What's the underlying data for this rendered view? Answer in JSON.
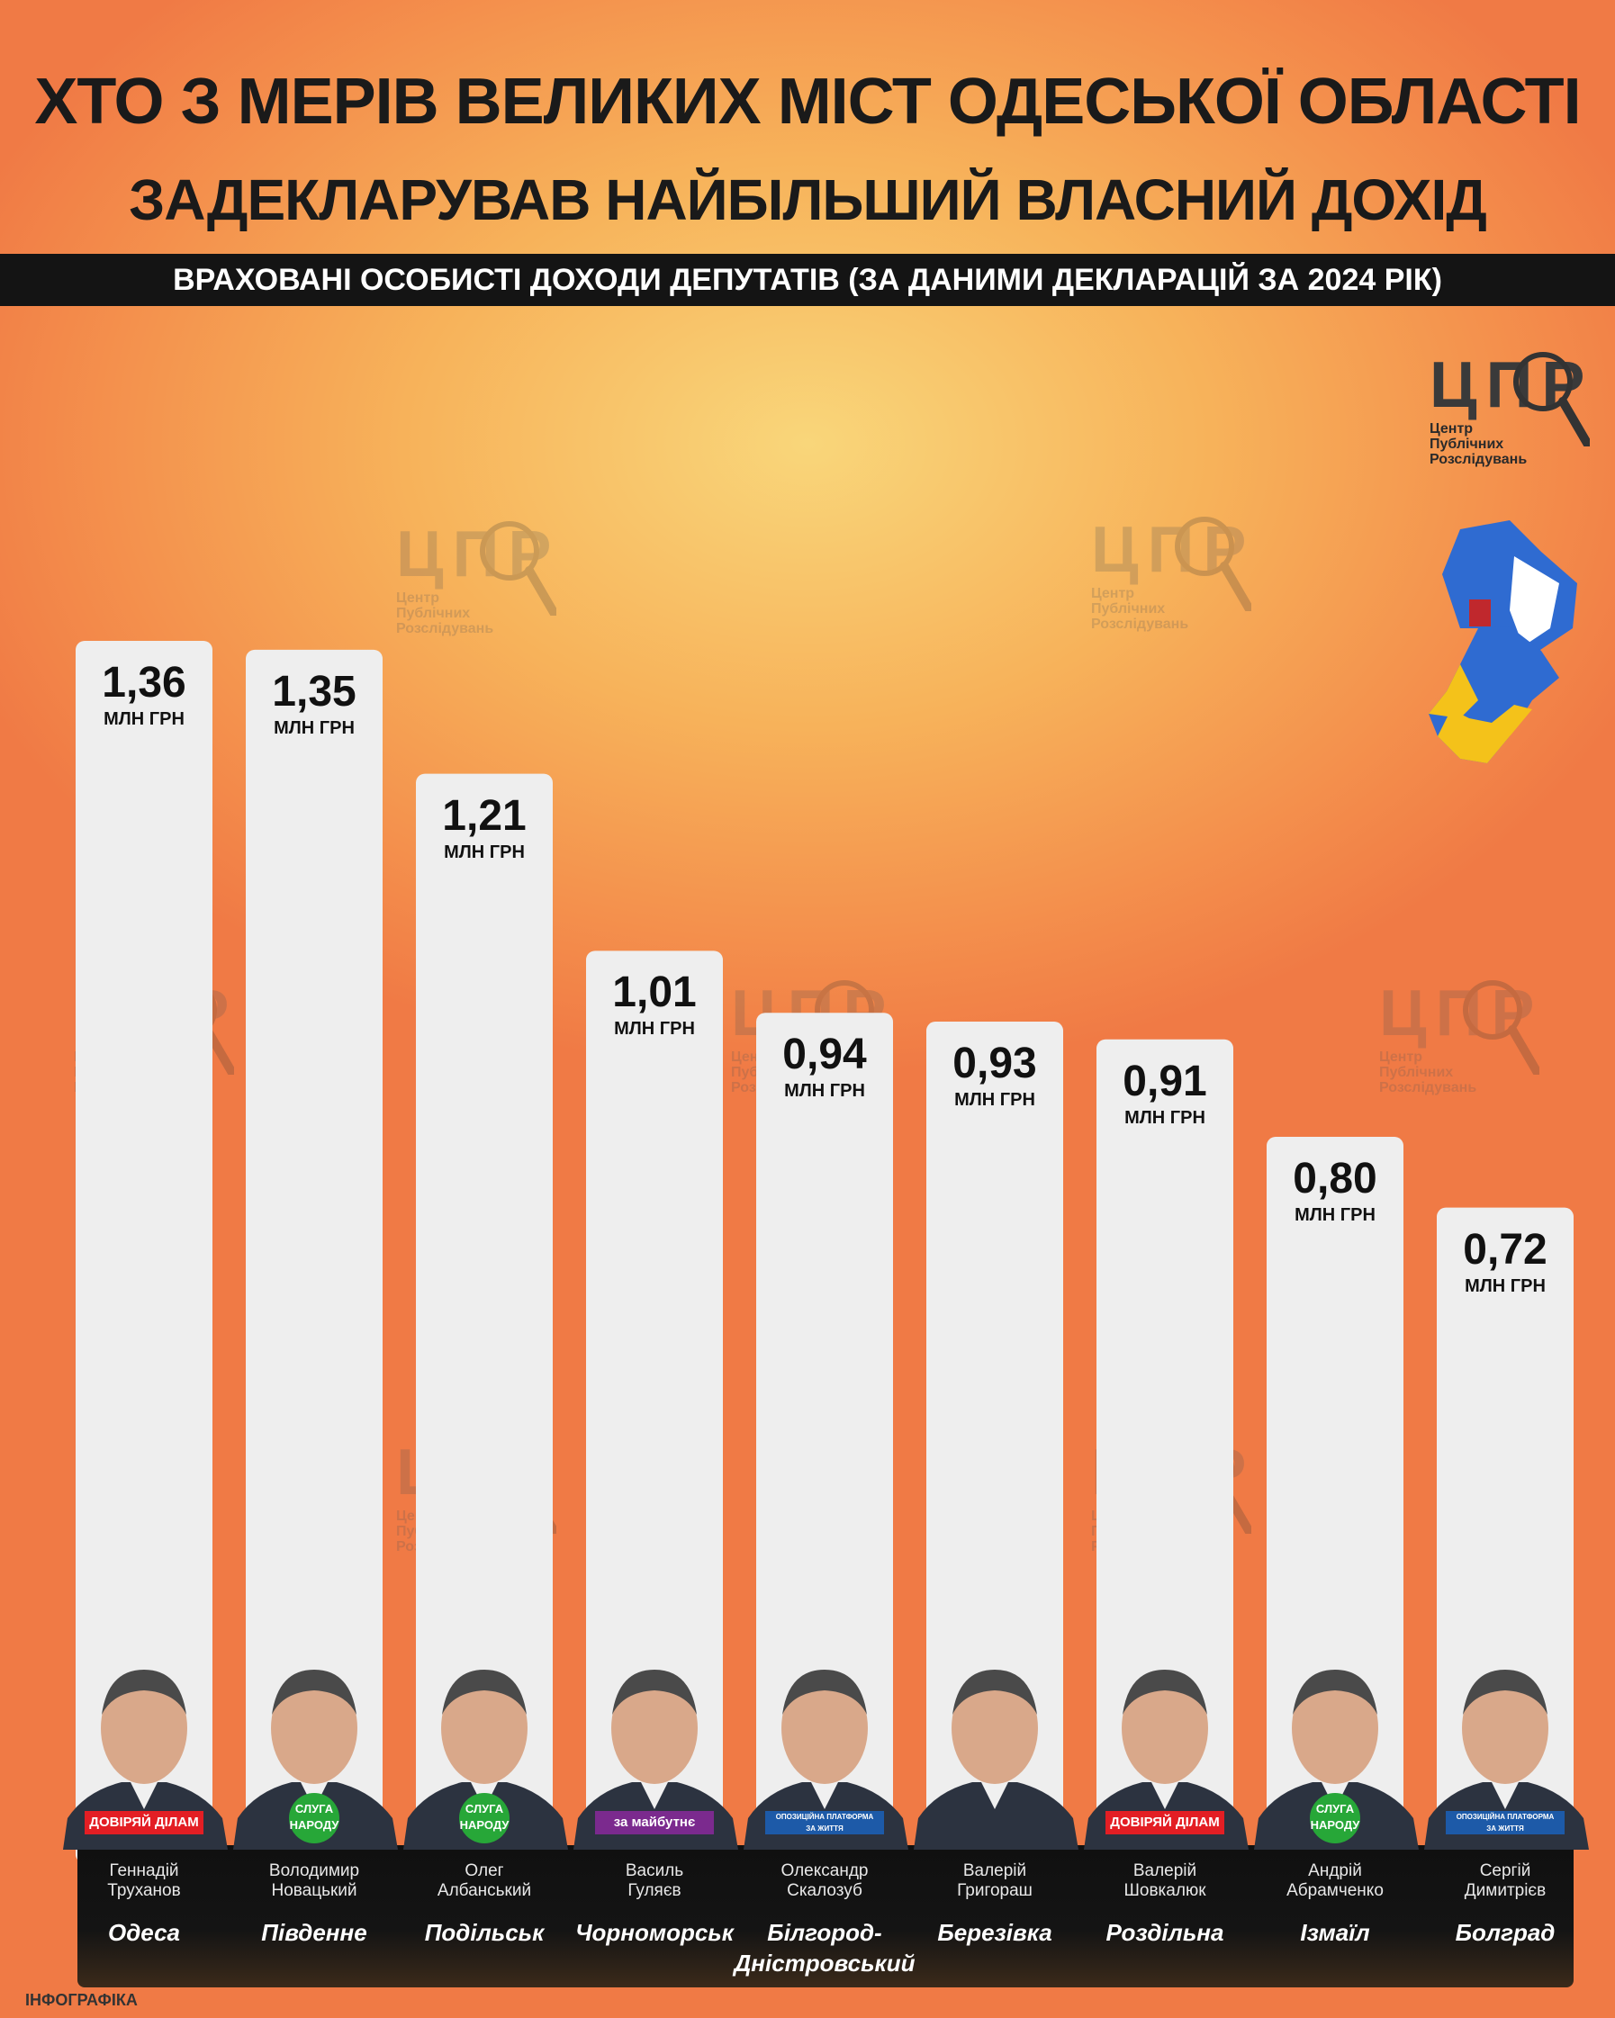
{
  "header": {
    "title_line1": "ХТО З МЕРІВ ВЕЛИКИХ МІСТ ОДЕСЬКОЇ ОБЛАСТІ",
    "title_line2": "ЗАДЕКЛАРУВАВ НАЙБІЛЬШИЙ ВЛАСНИЙ ДОХІД",
    "subtitle": "ВРАХОВАНІ ОСОБИСТІ ДОХОДИ ДЕПУТАТІВ (ЗА ДАНИМИ ДЕКЛАРАЦІЙ ЗА 2024 РІК)"
  },
  "logo": {
    "letters": "ЦПР",
    "line1": "Центр",
    "line2": "Публічних",
    "line3": "Розслідувань"
  },
  "footer": {
    "label": "ІНФОГРАФІКА"
  },
  "colors": {
    "bar": "#eeeeee",
    "panel": "#141414",
    "party_doviryai": "#e31e24",
    "party_sluha": "#27a738",
    "party_zamaibutne": "#7b2a8e",
    "party_opzzh": "#1d5aa8"
  },
  "chart_data": {
    "type": "bar",
    "unit": "МЛН ГРН",
    "categories": [
      "Геннадій Труханов",
      "Володимир Новацький",
      "Олег Албанський",
      "Василь Гуляєв",
      "Олександр Скалозуб",
      "Валерій Григораш",
      "Валерій Шовкалюк",
      "Андрій Абрамченко",
      "Сергій Димитрієв"
    ],
    "values": [
      1.36,
      1.35,
      1.21,
      1.01,
      0.94,
      0.93,
      0.91,
      0.8,
      0.72
    ],
    "value_labels": [
      "1,36",
      "1,35",
      "1,21",
      "1,01",
      "0,94",
      "0,93",
      "0,91",
      "0,80",
      "0,72"
    ],
    "ylim": [
      0,
      1.36
    ],
    "items": [
      {
        "name_first": "Геннадій",
        "name_last": "Труханов",
        "city": "Одеса",
        "party": "doviryai",
        "party_label_a": "ДОВІРЯЙ",
        "party_label_b": "ДІЛАМ"
      },
      {
        "name_first": "Володимир",
        "name_last": "Новацький",
        "city": "Південне",
        "party": "sluha",
        "party_label_a": "СЛУГА",
        "party_label_b": "НАРОДУ"
      },
      {
        "name_first": "Олег",
        "name_last": "Албанський",
        "city": "Подільськ",
        "party": "sluha",
        "party_label_a": "СЛУГА",
        "party_label_b": "НАРОДУ"
      },
      {
        "name_first": "Василь",
        "name_last": "Гуляєв",
        "city": "Чорноморськ",
        "party": "zamaibutne",
        "party_label_a": "за",
        "party_label_b": "майбутнє"
      },
      {
        "name_first": "Олександр",
        "name_last": "Скалозуб",
        "city": "Білгород-Дністровський",
        "city_line1": "Білгород-",
        "city_line2": "Дністровський",
        "party": "opzzh",
        "party_label_a": "ОПОЗИЦІЙНА ПЛАТФОРМА",
        "party_label_b": "ЗА ЖИТТЯ"
      },
      {
        "name_first": "Валерій",
        "name_last": "Григораш",
        "city": "Березівка",
        "party": "none"
      },
      {
        "name_first": "Валерій",
        "name_last": "Шовкалюк",
        "city": "Роздільна",
        "party": "doviryai",
        "party_label_a": "ДОВІРЯЙ",
        "party_label_b": "ДІЛАМ"
      },
      {
        "name_first": "Андрій",
        "name_last": "Абрамченко",
        "city": "Ізмаїл",
        "party": "sluha",
        "party_label_a": "СЛУГА",
        "party_label_b": "НАРОДУ"
      },
      {
        "name_first": "Сергій",
        "name_last": "Димитрієв",
        "city": "Болград",
        "party": "opzzh",
        "party_label_a": "ОПОЗИЦІЙНА ПЛАТФОРМА",
        "party_label_b": "ЗА ЖИТТЯ"
      }
    ]
  }
}
